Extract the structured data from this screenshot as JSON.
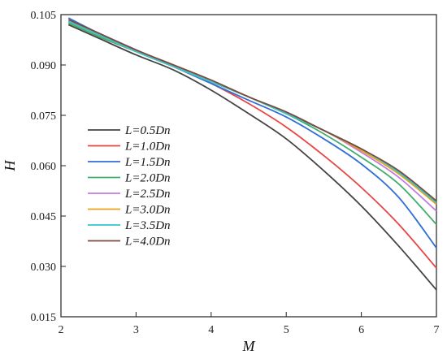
{
  "chart_data": {
    "type": "line",
    "title": "",
    "xlabel": "M",
    "ylabel": "H",
    "xlim": [
      2,
      7
    ],
    "ylim": [
      0.015,
      0.105
    ],
    "xticks": [
      2,
      3,
      4,
      5,
      6,
      7
    ],
    "yticks": [
      0.015,
      0.03,
      0.045,
      0.06,
      0.075,
      0.09,
      0.105
    ],
    "xtick_labels": [
      "2",
      "3",
      "4",
      "5",
      "6",
      "7"
    ],
    "ytick_labels": [
      "0.015",
      "0.030",
      "0.045",
      "0.060",
      "0.075",
      "0.090",
      "0.105"
    ],
    "grid": false,
    "legend_position": "center-left",
    "x": [
      2.1,
      2.5,
      3.0,
      3.5,
      4.0,
      4.5,
      5.0,
      5.5,
      6.0,
      6.5,
      7.0
    ],
    "series": [
      {
        "name": "L=0.5Dn",
        "color": "#444444",
        "values": [
          0.102,
          0.098,
          0.093,
          0.0885,
          0.0825,
          0.0755,
          0.068,
          0.0585,
          0.048,
          0.036,
          0.023
        ]
      },
      {
        "name": "L=1.0Dn",
        "color": "#e84545",
        "values": [
          0.1025,
          0.0985,
          0.094,
          0.0895,
          0.0845,
          0.0785,
          0.0715,
          0.063,
          0.0535,
          0.0425,
          0.0295
        ]
      },
      {
        "name": "L=1.5Dn",
        "color": "#2f6fd6",
        "values": [
          0.104,
          0.0995,
          0.0945,
          0.0895,
          0.0845,
          0.0795,
          0.0745,
          0.068,
          0.0605,
          0.0505,
          0.0355
        ]
      },
      {
        "name": "L=2.0Dn",
        "color": "#3fae6a",
        "values": [
          0.1025,
          0.0985,
          0.094,
          0.0895,
          0.085,
          0.0805,
          0.0755,
          0.0695,
          0.0625,
          0.0545,
          0.0425
        ]
      },
      {
        "name": "L=2.5Dn",
        "color": "#c27be0",
        "values": [
          0.103,
          0.099,
          0.094,
          0.0895,
          0.085,
          0.0805,
          0.0755,
          0.0705,
          0.064,
          0.0565,
          0.0465
        ]
      },
      {
        "name": "L=3.0Dn",
        "color": "#e6a21a",
        "values": [
          0.103,
          0.099,
          0.094,
          0.0895,
          0.085,
          0.0805,
          0.0755,
          0.0705,
          0.0645,
          0.0575,
          0.0485
        ]
      },
      {
        "name": "L=3.5Dn",
        "color": "#35c4c9",
        "values": [
          0.103,
          0.099,
          0.094,
          0.0895,
          0.085,
          0.0805,
          0.0755,
          0.0705,
          0.065,
          0.058,
          0.049
        ]
      },
      {
        "name": "L=4.0Dn",
        "color": "#7b4a3e",
        "values": [
          0.1035,
          0.0995,
          0.0945,
          0.09,
          0.0855,
          0.0805,
          0.076,
          0.0705,
          0.065,
          0.0585,
          0.0495
        ]
      }
    ]
  }
}
